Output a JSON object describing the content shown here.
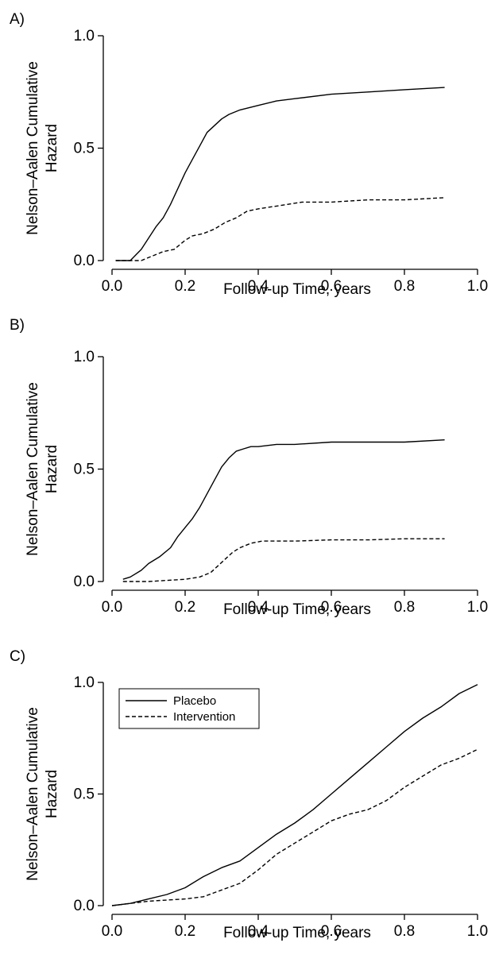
{
  "chart_data": [
    {
      "type": "line",
      "panel_label": "A)",
      "xlabel": "Follow-up Time, years",
      "ylabel_lines": [
        "Nelson–Aalen Cumulative",
        "Hazard"
      ],
      "xlim": [
        0,
        1.0
      ],
      "ylim": [
        0,
        1.0
      ],
      "xticks": [
        "0.0",
        "0.2",
        "0.4",
        "0.6",
        "0.8",
        "1.0"
      ],
      "yticks": [
        "0.0",
        "0.5",
        "1.0"
      ],
      "grid": false,
      "legend": null,
      "series": [
        {
          "name": "Placebo",
          "style": "solid",
          "x": [
            0.01,
            0.05,
            0.08,
            0.1,
            0.12,
            0.14,
            0.16,
            0.18,
            0.2,
            0.22,
            0.24,
            0.26,
            0.28,
            0.3,
            0.32,
            0.35,
            0.4,
            0.45,
            0.5,
            0.6,
            0.7,
            0.8,
            0.91
          ],
          "y": [
            0.0,
            0.0,
            0.05,
            0.1,
            0.15,
            0.19,
            0.25,
            0.32,
            0.39,
            0.45,
            0.51,
            0.57,
            0.6,
            0.63,
            0.65,
            0.67,
            0.69,
            0.71,
            0.72,
            0.74,
            0.75,
            0.76,
            0.77
          ]
        },
        {
          "name": "Intervention",
          "style": "dashed",
          "x": [
            0.01,
            0.08,
            0.11,
            0.14,
            0.17,
            0.2,
            0.22,
            0.25,
            0.28,
            0.31,
            0.34,
            0.37,
            0.4,
            0.44,
            0.48,
            0.52,
            0.6,
            0.7,
            0.8,
            0.91
          ],
          "y": [
            0.0,
            0.0,
            0.02,
            0.04,
            0.05,
            0.09,
            0.11,
            0.12,
            0.14,
            0.17,
            0.19,
            0.22,
            0.23,
            0.24,
            0.25,
            0.26,
            0.26,
            0.27,
            0.27,
            0.28
          ]
        }
      ]
    },
    {
      "type": "line",
      "panel_label": "B)",
      "xlabel": "Follow-up Time, years",
      "ylabel_lines": [
        "Nelson–Aalen Cumulative",
        "Hazard"
      ],
      "xlim": [
        0,
        1.0
      ],
      "ylim": [
        0,
        1.0
      ],
      "xticks": [
        "0.0",
        "0.2",
        "0.4",
        "0.6",
        "0.8",
        "1.0"
      ],
      "yticks": [
        "0.0",
        "0.5",
        "1.0"
      ],
      "grid": false,
      "legend": null,
      "series": [
        {
          "name": "Placebo",
          "style": "solid",
          "x": [
            0.03,
            0.05,
            0.08,
            0.1,
            0.13,
            0.16,
            0.18,
            0.2,
            0.22,
            0.24,
            0.26,
            0.28,
            0.3,
            0.32,
            0.34,
            0.36,
            0.38,
            0.4,
            0.45,
            0.5,
            0.6,
            0.7,
            0.8,
            0.91
          ],
          "y": [
            0.01,
            0.02,
            0.05,
            0.08,
            0.11,
            0.15,
            0.2,
            0.24,
            0.28,
            0.33,
            0.39,
            0.45,
            0.51,
            0.55,
            0.58,
            0.59,
            0.6,
            0.6,
            0.61,
            0.61,
            0.62,
            0.62,
            0.62,
            0.63
          ]
        },
        {
          "name": "Intervention",
          "style": "dashed",
          "x": [
            0.03,
            0.1,
            0.15,
            0.2,
            0.24,
            0.27,
            0.29,
            0.31,
            0.33,
            0.35,
            0.38,
            0.41,
            0.45,
            0.5,
            0.6,
            0.7,
            0.8,
            0.91
          ],
          "y": [
            0.0,
            0.0,
            0.005,
            0.01,
            0.02,
            0.04,
            0.07,
            0.1,
            0.13,
            0.15,
            0.17,
            0.18,
            0.18,
            0.18,
            0.185,
            0.185,
            0.19,
            0.19
          ]
        }
      ]
    },
    {
      "type": "line",
      "panel_label": "C)",
      "xlabel": "Follow-up Time, years",
      "ylabel_lines": [
        "Nelson–Aalen Cumulative",
        "Hazard"
      ],
      "xlim": [
        0,
        1.0
      ],
      "ylim": [
        0,
        1.0
      ],
      "xticks": [
        "0.0",
        "0.2",
        "0.4",
        "0.6",
        "0.8",
        "1.0"
      ],
      "yticks": [
        "0.0",
        "0.5",
        "1.0"
      ],
      "grid": false,
      "legend": "top-left",
      "series": [
        {
          "name": "Placebo",
          "style": "solid",
          "x": [
            0.0,
            0.05,
            0.1,
            0.15,
            0.2,
            0.25,
            0.3,
            0.35,
            0.4,
            0.45,
            0.5,
            0.55,
            0.6,
            0.65,
            0.7,
            0.75,
            0.8,
            0.85,
            0.9,
            0.95,
            1.0
          ],
          "y": [
            0.0,
            0.01,
            0.03,
            0.05,
            0.08,
            0.13,
            0.17,
            0.2,
            0.26,
            0.32,
            0.37,
            0.43,
            0.5,
            0.57,
            0.64,
            0.71,
            0.78,
            0.84,
            0.89,
            0.95,
            0.99
          ]
        },
        {
          "name": "Intervention",
          "style": "dashed",
          "x": [
            0.0,
            0.05,
            0.1,
            0.15,
            0.2,
            0.25,
            0.3,
            0.35,
            0.4,
            0.45,
            0.5,
            0.55,
            0.6,
            0.65,
            0.7,
            0.75,
            0.8,
            0.85,
            0.9,
            0.95,
            1.0
          ],
          "y": [
            0.0,
            0.01,
            0.02,
            0.025,
            0.03,
            0.04,
            0.07,
            0.1,
            0.16,
            0.23,
            0.28,
            0.33,
            0.38,
            0.41,
            0.43,
            0.47,
            0.53,
            0.58,
            0.63,
            0.66,
            0.7
          ]
        }
      ]
    }
  ]
}
